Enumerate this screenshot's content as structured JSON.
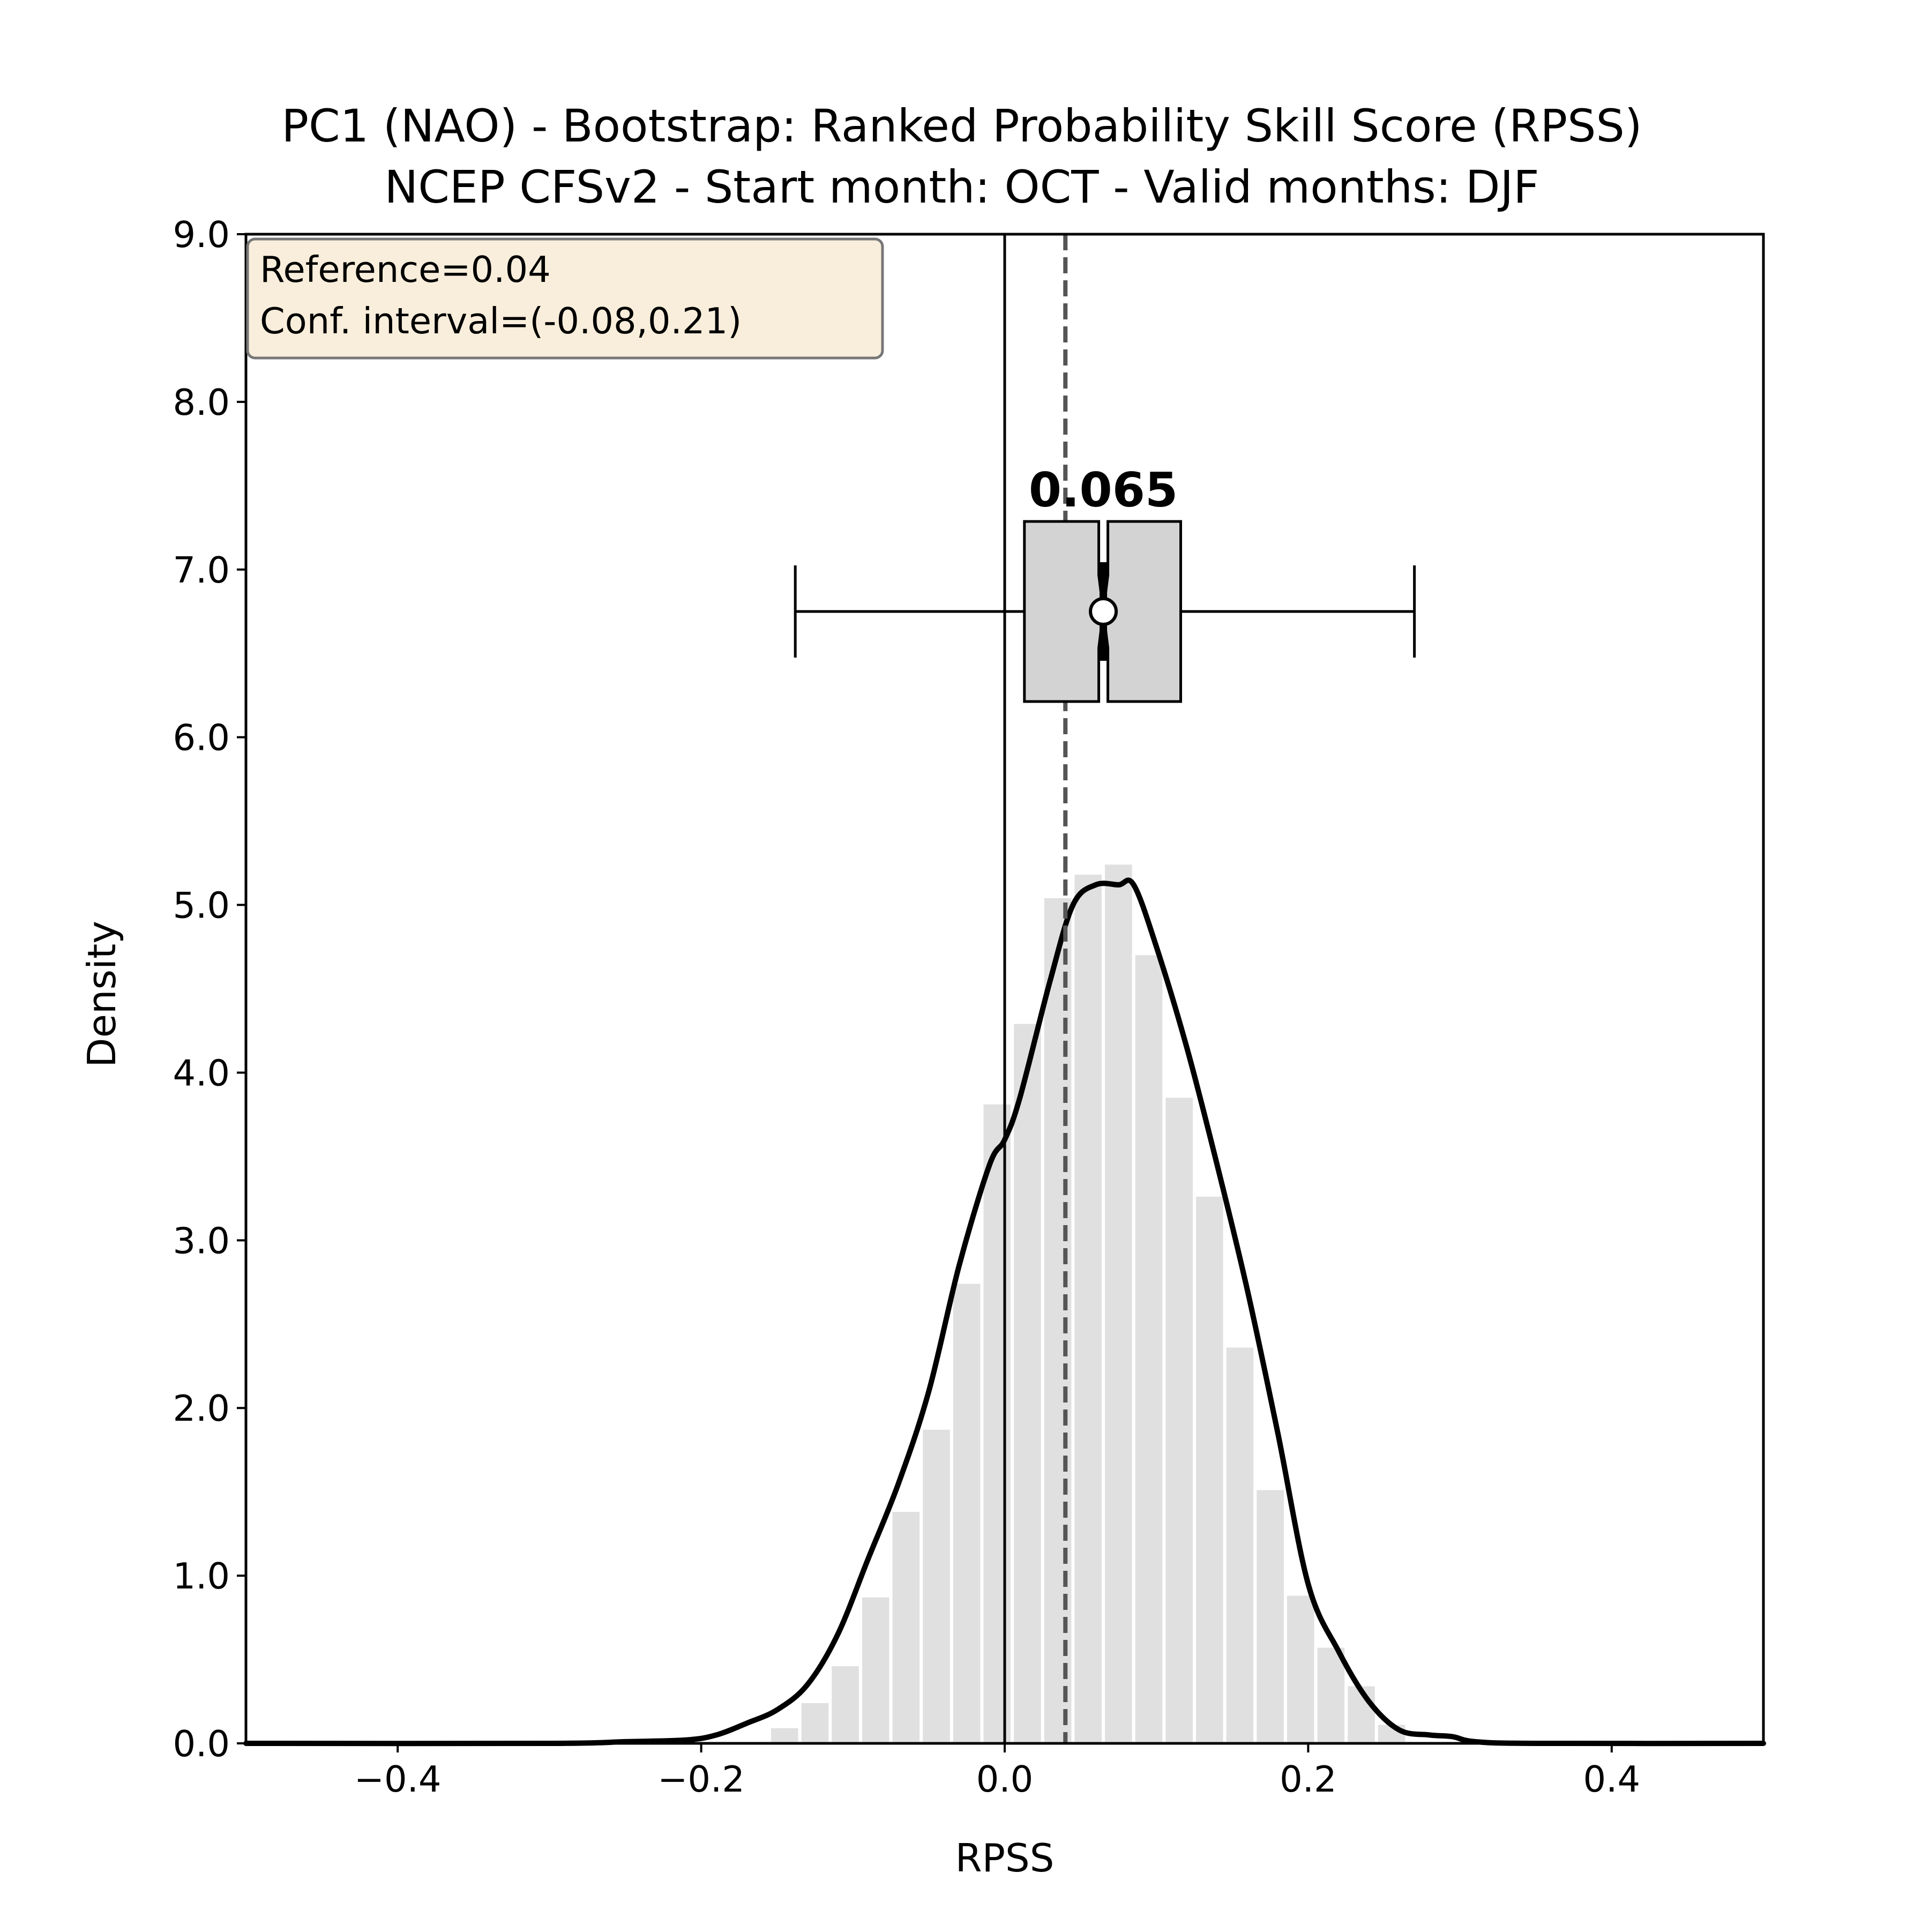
{
  "chart_data": {
    "type": "bar",
    "title": "PC1 (NAO) - Bootstrap: Ranked Probability Skill Score (RPSS)",
    "subtitle": "NCEP CFSv2 - Start month: OCT - Valid months: DJF",
    "xlabel": "RPSS",
    "ylabel": "Density",
    "xlim": [
      -0.5,
      0.5
    ],
    "ylim": [
      0,
      9
    ],
    "xticks": [
      -0.4,
      -0.2,
      0.0,
      0.2,
      0.4
    ],
    "xtick_labels": [
      "−0.4",
      "−0.2",
      "0.0",
      "0.2",
      "0.4"
    ],
    "yticks": [
      0,
      1,
      2,
      3,
      4,
      5,
      6,
      7,
      8,
      9
    ],
    "ytick_labels": [
      "0.0",
      "1.0",
      "2.0",
      "3.0",
      "4.0",
      "5.0",
      "6.0",
      "7.0",
      "8.0",
      "9.0"
    ],
    "grid": false,
    "histogram": {
      "color": "#e0e0e0",
      "bin_width": 0.02,
      "bin_starts": [
        -0.155,
        -0.135,
        -0.115,
        -0.095,
        -0.075,
        -0.055,
        -0.035,
        -0.015,
        0.005,
        0.025,
        0.045,
        0.065,
        0.085,
        0.105,
        0.125,
        0.145,
        0.165,
        0.185,
        0.205,
        0.225,
        0.245
      ],
      "densities": [
        0.1,
        0.25,
        0.47,
        0.88,
        1.39,
        1.88,
        2.75,
        3.82,
        4.3,
        5.05,
        5.19,
        5.25,
        4.71,
        3.86,
        3.27,
        2.37,
        1.52,
        0.89,
        0.58,
        0.35,
        0.12
      ]
    },
    "kde": {
      "color": "#000000",
      "x": [
        -0.5,
        -0.3,
        -0.25,
        -0.21,
        -0.19,
        -0.17,
        -0.15,
        -0.13,
        -0.11,
        -0.09,
        -0.07,
        -0.05,
        -0.03,
        -0.01,
        0.0,
        0.01,
        0.03,
        0.045,
        0.06,
        0.075,
        0.085,
        0.1,
        0.12,
        0.14,
        0.16,
        0.18,
        0.2,
        0.22,
        0.24,
        0.26,
        0.28,
        0.295,
        0.31,
        0.35,
        0.5
      ],
      "density": [
        0.0,
        0.0,
        0.01,
        0.02,
        0.05,
        0.12,
        0.2,
        0.35,
        0.65,
        1.1,
        1.55,
        2.1,
        2.85,
        3.45,
        3.6,
        3.85,
        4.55,
        5.0,
        5.12,
        5.12,
        5.12,
        4.75,
        4.15,
        3.45,
        2.7,
        1.85,
        0.95,
        0.55,
        0.25,
        0.08,
        0.05,
        0.04,
        0.01,
        0.0,
        0.0
      ]
    },
    "reference_line": {
      "x": 0.04,
      "style": "dashed",
      "color": "#555555"
    },
    "zero_line": {
      "x": 0.0,
      "color": "#000000"
    },
    "boxplot": {
      "y": 6.75,
      "whisker_low": -0.138,
      "q1": 0.013,
      "median": 0.065,
      "q3": 0.116,
      "whisker_high": 0.27,
      "notch_low": 0.062,
      "notch_high": 0.068,
      "fill": "#d3d3d3",
      "median_label": "0.065"
    },
    "info_box": {
      "lines": [
        "Reference=0.04",
        "Conf. interval=(-0.08,0.21)"
      ],
      "placement": "top-left",
      "background": "#f8eedb",
      "border": "#777777"
    }
  }
}
